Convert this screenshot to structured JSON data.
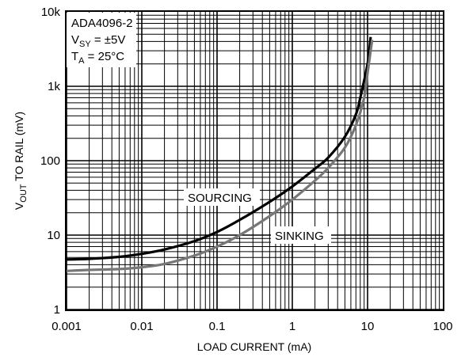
{
  "chart_data": {
    "type": "line",
    "x_scale": "log",
    "y_scale": "log",
    "xlim": [
      0.001,
      100
    ],
    "ylim": [
      1,
      10000
    ],
    "x_ticks": [
      "0.001",
      "0.01",
      "0.1",
      "1",
      "10",
      "100"
    ],
    "y_ticks": [
      "1",
      "10",
      "100",
      "1k",
      "10k"
    ],
    "xlabel": "LOAD CURRENT (mA)",
    "ylabel_main": "V",
    "ylabel_sub": "OUT",
    "ylabel_rest": " TO RAIL (mV)",
    "grid": true,
    "conditions": {
      "line1": "ADA4096-2",
      "line2_main": "V",
      "line2_sub": "SY",
      "line2_rest": " = ±5V",
      "line3_main": "T",
      "line3_sub": "A",
      "line3_rest": " = 25°C"
    },
    "series": [
      {
        "name": "SOURCING",
        "color": "#000000",
        "x": [
          0.001,
          0.002,
          0.005,
          0.01,
          0.02,
          0.05,
          0.1,
          0.2,
          0.5,
          1,
          2,
          3,
          5,
          7,
          8,
          10,
          11
        ],
        "y": [
          4.7,
          4.8,
          5.1,
          5.6,
          6.4,
          8.3,
          11,
          16,
          28,
          45,
          78,
          110,
          210,
          420,
          700,
          2000,
          4600
        ]
      },
      {
        "name": "SINKING",
        "color": "#777777",
        "x": [
          0.001,
          0.002,
          0.005,
          0.01,
          0.02,
          0.05,
          0.1,
          0.2,
          0.5,
          1,
          2,
          3,
          5,
          7,
          9,
          10,
          11.5
        ],
        "y": [
          3.3,
          3.4,
          3.5,
          3.7,
          4.1,
          5.3,
          7,
          10,
          18,
          30,
          54,
          80,
          150,
          300,
          700,
          1500,
          4200
        ]
      }
    ]
  }
}
